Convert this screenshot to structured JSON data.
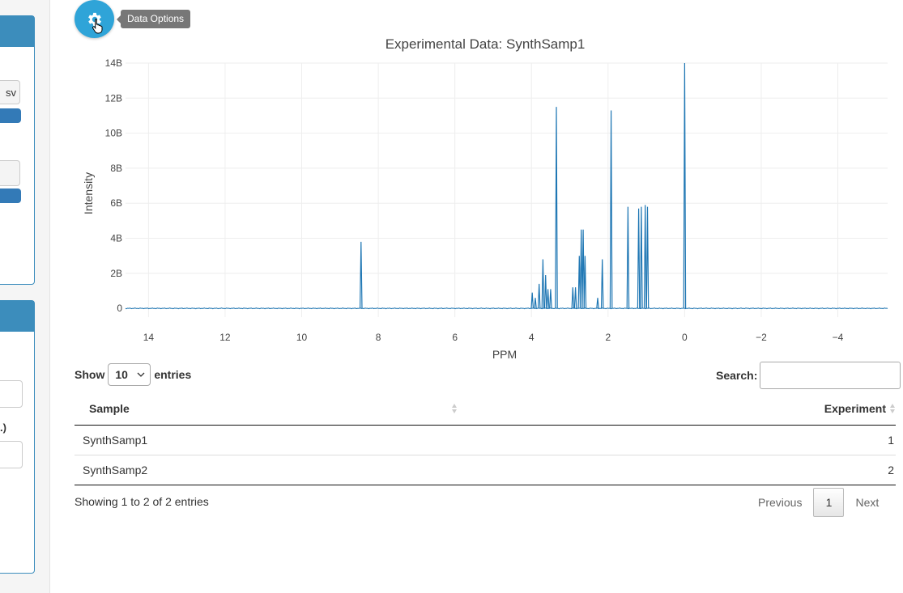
{
  "sidebar": {
    "button_fragment": "sv",
    "label_fragment": ".)"
  },
  "gear": {
    "icon": "gear-icon",
    "tooltip": "Data Options"
  },
  "chart_data": {
    "type": "line",
    "title": "Experimental Data: SynthSamp1",
    "xlabel": "PPM",
    "ylabel": "Intensity",
    "xlim": [
      14.6,
      -5.3
    ],
    "ylim": [
      -0.5,
      14
    ],
    "x_reversed": true,
    "xticks": [
      14,
      12,
      10,
      8,
      6,
      4,
      2,
      0,
      -2,
      -4
    ],
    "xtick_labels": [
      "14",
      "12",
      "10",
      "8",
      "6",
      "4",
      "2",
      "0",
      "−2",
      "−4"
    ],
    "yticks": [
      0,
      2,
      4,
      6,
      8,
      10,
      12,
      14
    ],
    "ytick_labels": [
      "0",
      "2B",
      "4B",
      "6B",
      "8B",
      "10B",
      "12B",
      "14B"
    ],
    "y_unit": "billions",
    "grid": true,
    "color": "#1f77b4",
    "peaks": [
      {
        "x": 8.45,
        "y": 3.8
      },
      {
        "x": 3.98,
        "y": 0.9
      },
      {
        "x": 3.9,
        "y": 0.6
      },
      {
        "x": 3.8,
        "y": 1.4
      },
      {
        "x": 3.7,
        "y": 2.8
      },
      {
        "x": 3.63,
        "y": 1.9
      },
      {
        "x": 3.57,
        "y": 1.1
      },
      {
        "x": 3.5,
        "y": 1.1
      },
      {
        "x": 3.35,
        "y": 11.5
      },
      {
        "x": 2.92,
        "y": 1.2
      },
      {
        "x": 2.85,
        "y": 1.2
      },
      {
        "x": 2.75,
        "y": 3.0
      },
      {
        "x": 2.7,
        "y": 4.5
      },
      {
        "x": 2.65,
        "y": 4.5
      },
      {
        "x": 2.6,
        "y": 3.0
      },
      {
        "x": 2.27,
        "y": 0.6
      },
      {
        "x": 2.15,
        "y": 2.8
      },
      {
        "x": 1.92,
        "y": 11.3
      },
      {
        "x": 1.48,
        "y": 5.8
      },
      {
        "x": 1.2,
        "y": 5.7
      },
      {
        "x": 1.13,
        "y": 5.8
      },
      {
        "x": 1.03,
        "y": 5.9
      },
      {
        "x": 0.97,
        "y": 5.8
      },
      {
        "x": 0.0,
        "y": 14.0
      }
    ]
  },
  "table": {
    "show_label": "Show",
    "entries_label": "entries",
    "length_value": "10",
    "search_label": "Search:",
    "search_value": "",
    "columns": [
      "Sample",
      "Experiment"
    ],
    "rows": [
      {
        "sample": "SynthSamp1",
        "experiment": "1"
      },
      {
        "sample": "SynthSamp2",
        "experiment": "2"
      }
    ],
    "info": "Showing 1 to 2 of 2 entries",
    "prev_label": "Previous",
    "current_page": "1",
    "next_label": "Next"
  }
}
